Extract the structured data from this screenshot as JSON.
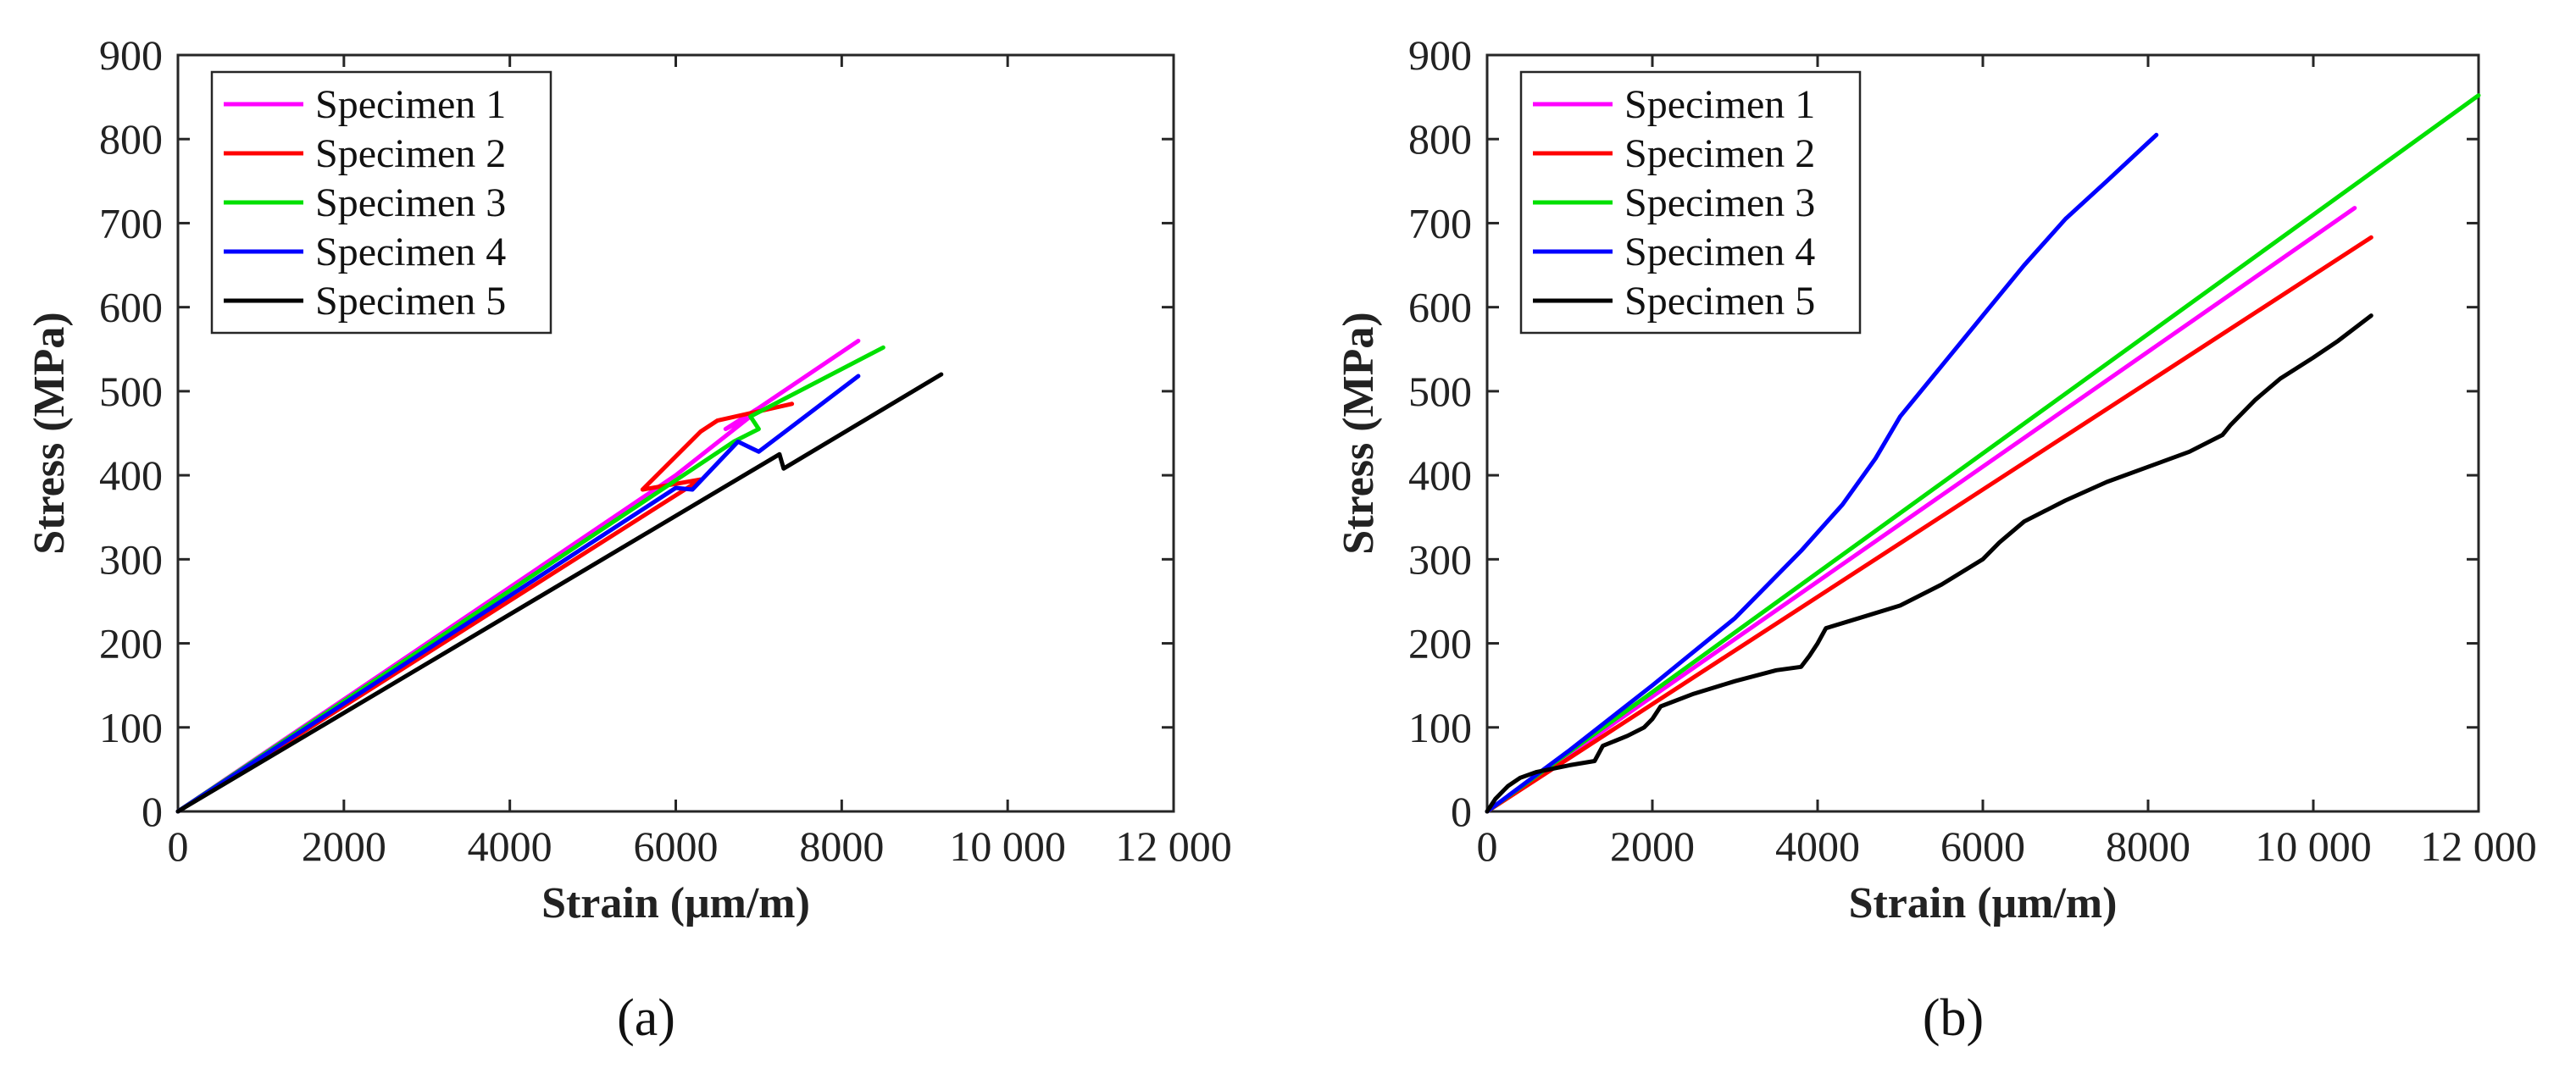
{
  "chart_data": [
    {
      "type": "line",
      "panel_label": "(a)",
      "xlabel": "Strain (μm/m)",
      "ylabel": "Stress (MPa)",
      "xlim": [
        0,
        12000
      ],
      "ylim": [
        0,
        900
      ],
      "xticks": [
        0,
        2000,
        4000,
        6000,
        8000,
        10000,
        12000
      ],
      "xtick_labels": [
        "0",
        "2000",
        "4000",
        "6000",
        "8000",
        "10 000",
        "12 000"
      ],
      "yticks": [
        0,
        100,
        200,
        300,
        400,
        500,
        600,
        700,
        800,
        900
      ],
      "ytick_labels": [
        "0",
        "100",
        "200",
        "300",
        "400",
        "500",
        "600",
        "700",
        "800",
        "900"
      ],
      "grid": false,
      "legend_position": "top-left",
      "series": [
        {
          "name": "Specimen 1",
          "color": "#ff00ff",
          "points": [
            [
              0,
              0
            ],
            [
              6000,
              400
            ],
            [
              6900,
              470
            ],
            [
              6600,
              455
            ],
            [
              7000,
              480
            ],
            [
              8200,
              560
            ]
          ]
        },
        {
          "name": "Specimen 2",
          "color": "#ff0000",
          "points": [
            [
              0,
              0
            ],
            [
              6300,
              395
            ],
            [
              5600,
              383
            ],
            [
              6300,
              452
            ],
            [
              6500,
              465
            ],
            [
              7400,
              485
            ]
          ]
        },
        {
          "name": "Specimen 3",
          "color": "#00e000",
          "points": [
            [
              0,
              0
            ],
            [
              6700,
              440
            ],
            [
              7000,
              455
            ],
            [
              6900,
              470
            ],
            [
              8500,
              552
            ]
          ]
        },
        {
          "name": "Specimen 4",
          "color": "#0000ff",
          "points": [
            [
              0,
              0
            ],
            [
              6000,
              385
            ],
            [
              6200,
              383
            ],
            [
              6750,
              440
            ],
            [
              7000,
              428
            ],
            [
              8200,
              518
            ]
          ]
        },
        {
          "name": "Specimen 5",
          "color": "#000000",
          "points": [
            [
              0,
              0
            ],
            [
              7250,
              425
            ],
            [
              7300,
              408
            ],
            [
              9200,
              520
            ]
          ]
        }
      ]
    },
    {
      "type": "line",
      "panel_label": "(b)",
      "xlabel": "Strain (μm/m)",
      "ylabel": "Stress (MPa)",
      "xlim": [
        0,
        12000
      ],
      "ylim": [
        0,
        900
      ],
      "xticks": [
        0,
        2000,
        4000,
        6000,
        8000,
        10000,
        12000
      ],
      "xtick_labels": [
        "0",
        "2000",
        "4000",
        "6000",
        "8000",
        "10 000",
        "12 000"
      ],
      "yticks": [
        0,
        100,
        200,
        300,
        400,
        500,
        600,
        700,
        800,
        900
      ],
      "ytick_labels": [
        "0",
        "100",
        "200",
        "300",
        "400",
        "500",
        "600",
        "700",
        "800",
        "900"
      ],
      "grid": false,
      "legend_position": "top-left",
      "series": [
        {
          "name": "Specimen 1",
          "color": "#ff00ff",
          "points": [
            [
              0,
              0
            ],
            [
              10500,
              718
            ]
          ]
        },
        {
          "name": "Specimen 2",
          "color": "#ff0000",
          "points": [
            [
              0,
              0
            ],
            [
              10700,
              683
            ]
          ]
        },
        {
          "name": "Specimen 3",
          "color": "#00e000",
          "points": [
            [
              0,
              0
            ],
            [
              12000,
              852
            ]
          ]
        },
        {
          "name": "Specimen 4",
          "color": "#0000ff",
          "points": [
            [
              0,
              0
            ],
            [
              1000,
              73
            ],
            [
              2000,
              150
            ],
            [
              3000,
              230
            ],
            [
              3800,
              310
            ],
            [
              4300,
              365
            ],
            [
              4700,
              420
            ],
            [
              5000,
              470
            ],
            [
              5500,
              530
            ],
            [
              6000,
              590
            ],
            [
              6500,
              650
            ],
            [
              7000,
              705
            ],
            [
              7500,
              750
            ],
            [
              8100,
              805
            ]
          ]
        },
        {
          "name": "Specimen 5",
          "color": "#000000",
          "points": [
            [
              0,
              0
            ],
            [
              100,
              15
            ],
            [
              250,
              30
            ],
            [
              400,
              40
            ],
            [
              600,
              47
            ],
            [
              1000,
              55
            ],
            [
              1300,
              60
            ],
            [
              1400,
              78
            ],
            [
              1700,
              90
            ],
            [
              1900,
              100
            ],
            [
              2000,
              110
            ],
            [
              2100,
              125
            ],
            [
              2500,
              140
            ],
            [
              3000,
              155
            ],
            [
              3500,
              168
            ],
            [
              3800,
              172
            ],
            [
              3900,
              185
            ],
            [
              4000,
              200
            ],
            [
              4100,
              218
            ],
            [
              4500,
              230
            ],
            [
              5000,
              245
            ],
            [
              5500,
              270
            ],
            [
              6000,
              300
            ],
            [
              6200,
              320
            ],
            [
              6500,
              345
            ],
            [
              7000,
              370
            ],
            [
              7500,
              392
            ],
            [
              8000,
              410
            ],
            [
              8500,
              428
            ],
            [
              8900,
              448
            ],
            [
              9000,
              460
            ],
            [
              9300,
              490
            ],
            [
              9600,
              515
            ],
            [
              10000,
              540
            ],
            [
              10300,
              560
            ],
            [
              10700,
              590
            ]
          ]
        }
      ]
    }
  ]
}
